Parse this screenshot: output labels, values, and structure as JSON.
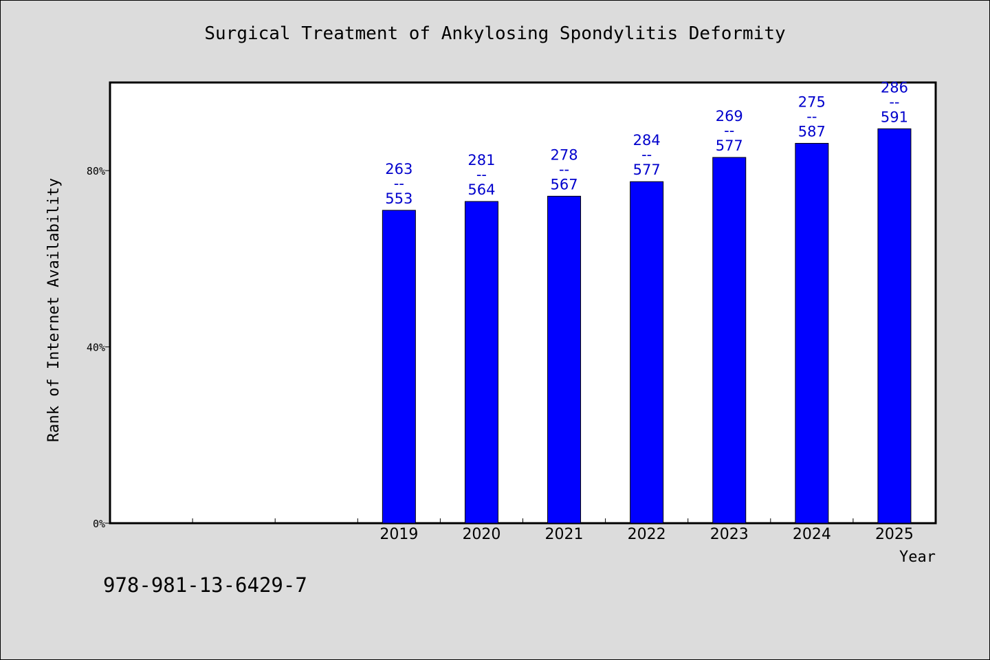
{
  "chart_data": {
    "type": "bar",
    "title": "Surgical Treatment of Ankylosing Spondylitis Deformity",
    "xlabel": "Year",
    "ylabel": "Rank of Internet Availability",
    "categories": [
      "",
      "",
      "",
      "2019",
      "2020",
      "2021",
      "2022",
      "2023",
      "2024",
      "2025"
    ],
    "values": [
      null,
      null,
      null,
      71.0,
      73.0,
      74.2,
      77.5,
      83.0,
      86.2,
      89.5
    ],
    "data_labels": [
      null,
      null,
      null,
      {
        "top": "263",
        "sep": "--",
        "bottom": "553"
      },
      {
        "top": "281",
        "sep": "--",
        "bottom": "564"
      },
      {
        "top": "278",
        "sep": "--",
        "bottom": "567"
      },
      {
        "top": "284",
        "sep": "--",
        "bottom": "577"
      },
      {
        "top": "269",
        "sep": "--",
        "bottom": "577"
      },
      {
        "top": "275",
        "sep": "--",
        "bottom": "587"
      },
      {
        "top": "286",
        "sep": "--",
        "bottom": "591"
      }
    ],
    "ylim": [
      0,
      100
    ],
    "yticks": [
      0,
      40,
      80
    ],
    "ytick_labels": [
      "0%",
      "40%",
      "80%"
    ],
    "grid": false,
    "colors": {
      "bar": "#0000ff",
      "label": "#0000cc",
      "plot_bg": "#ffffff",
      "page_bg": "#dcdcdc"
    }
  },
  "footer": {
    "isbn": "978-981-13-6429-7"
  }
}
